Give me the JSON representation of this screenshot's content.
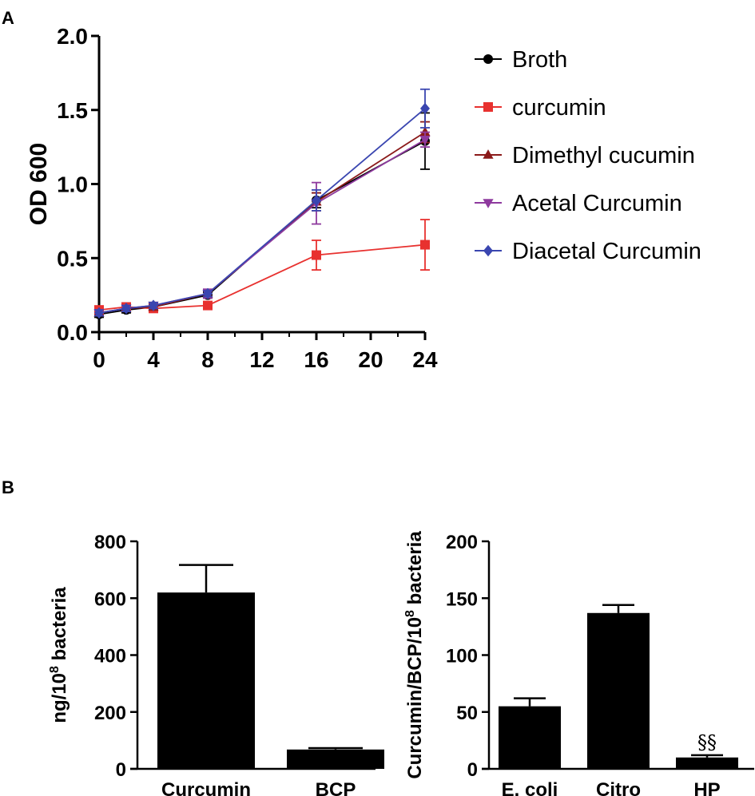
{
  "panels": {
    "a_label": "A",
    "b_label": "B"
  },
  "colors": {
    "Broth": "#000000",
    "curcumin": "#e8312f",
    "Dimethyl cucumin": "#8b1a1a",
    "Acetal Curcumin": "#8e3a9e",
    "Diacetal Curcumin": "#3a46b0",
    "bars": "#000000"
  },
  "chart_data": [
    {
      "type": "line",
      "title": "",
      "xlabel": "",
      "ylabel": "OD 600",
      "xlim": [
        0,
        24
      ],
      "ylim": [
        0,
        2
      ],
      "xticks": [
        "0",
        "4",
        "8",
        "12",
        "16",
        "20",
        "24"
      ],
      "yticks": [
        "0.0",
        "0.5",
        "1.0",
        "1.5",
        "2.0"
      ],
      "legend_position": "right",
      "series": [
        {
          "name": "Broth",
          "marker": "circle",
          "x": [
            0,
            2,
            4,
            8,
            16,
            24
          ],
          "y": [
            0.12,
            0.15,
            0.17,
            0.25,
            0.89,
            1.29
          ],
          "err": [
            0.02,
            0.02,
            0.02,
            0.02,
            0.05,
            0.19
          ]
        },
        {
          "name": "curcumin",
          "marker": "square",
          "x": [
            0,
            2,
            4,
            8,
            16,
            24
          ],
          "y": [
            0.15,
            0.17,
            0.16,
            0.18,
            0.52,
            0.59
          ],
          "err": [
            0.02,
            0.02,
            0.02,
            0.02,
            0.1,
            0.17
          ]
        },
        {
          "name": "Dimethyl cucumin",
          "marker": "triangle-up",
          "x": [
            0,
            2,
            4,
            8,
            16,
            24
          ],
          "y": [
            0.13,
            0.16,
            0.17,
            0.26,
            0.88,
            1.35
          ],
          "err": [
            0.02,
            0.02,
            0.02,
            0.02,
            0.06,
            0.07
          ]
        },
        {
          "name": "Acetal Curcumin",
          "marker": "triangle-down",
          "x": [
            0,
            2,
            4,
            8,
            16,
            24
          ],
          "y": [
            0.13,
            0.16,
            0.18,
            0.26,
            0.87,
            1.3
          ],
          "err": [
            0.02,
            0.02,
            0.02,
            0.03,
            0.14,
            0.05
          ]
        },
        {
          "name": "Diacetal Curcumin",
          "marker": "diamond",
          "x": [
            0,
            2,
            4,
            8,
            16,
            24
          ],
          "y": [
            0.13,
            0.16,
            0.18,
            0.26,
            0.89,
            1.51
          ],
          "err": [
            0.02,
            0.02,
            0.02,
            0.02,
            0.07,
            0.13
          ]
        }
      ]
    },
    {
      "type": "bar",
      "title": "",
      "xlabel": "",
      "ylabel_prefix": "ng/10",
      "ylabel_sup": "8",
      "ylabel_suffix": " bacteria",
      "ylim": [
        0,
        800
      ],
      "yticks": [
        "0",
        "200",
        "400",
        "600",
        "800"
      ],
      "categories": [
        "Curcumin",
        "BCP"
      ],
      "values": [
        620,
        68
      ],
      "errors": [
        97,
        5
      ]
    },
    {
      "type": "bar",
      "title": "",
      "xlabel": "",
      "ylabel_prefix": "Curcumin/BCP/10",
      "ylabel_sup": "8",
      "ylabel_suffix": " bacteria",
      "ylim": [
        0,
        200
      ],
      "yticks": [
        "0",
        "50",
        "100",
        "150",
        "200"
      ],
      "categories": [
        "E. coli",
        "Citro",
        "HP"
      ],
      "values": [
        55,
        137,
        10
      ],
      "errors": [
        7,
        7,
        2
      ],
      "annotations": [
        {
          "category": "HP",
          "text": "§§"
        }
      ]
    }
  ]
}
